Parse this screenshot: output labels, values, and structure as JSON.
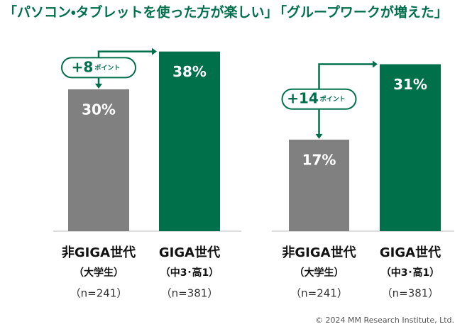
{
  "chart_data": [
    {
      "type": "bar",
      "title": "「パソコン・タブレットを使った方が楽しい」",
      "categories": [
        "非GIGA世代",
        "GIGA世代"
      ],
      "category_notes": [
        "（大学生）",
        "（中3･高1）"
      ],
      "sample_sizes": [
        "（n=241）",
        "（n=381）"
      ],
      "values": [
        30,
        38
      ],
      "value_labels": [
        "30%",
        "38%"
      ],
      "colors": [
        "#808080",
        "#00704a"
      ],
      "ylim": [
        0,
        45
      ],
      "annotation": {
        "value": 8,
        "label": "+8",
        "unit": "ポイント"
      }
    },
    {
      "type": "bar",
      "title": "「グループワークが増えた」",
      "categories": [
        "非GIGA世代",
        "GIGA世代"
      ],
      "category_notes": [
        "（大学生）",
        "（中3･高1）"
      ],
      "sample_sizes": [
        "（n=241）",
        "（n=381）"
      ],
      "values": [
        17,
        31
      ],
      "value_labels": [
        "17%",
        "31%"
      ],
      "colors": [
        "#808080",
        "#00704a"
      ],
      "ylim": [
        0,
        39.5
      ],
      "annotation": {
        "value": 14,
        "label": "+14",
        "unit": "ポイント"
      }
    }
  ],
  "copyright": "© 2024 MM Research Institute, Ltd."
}
